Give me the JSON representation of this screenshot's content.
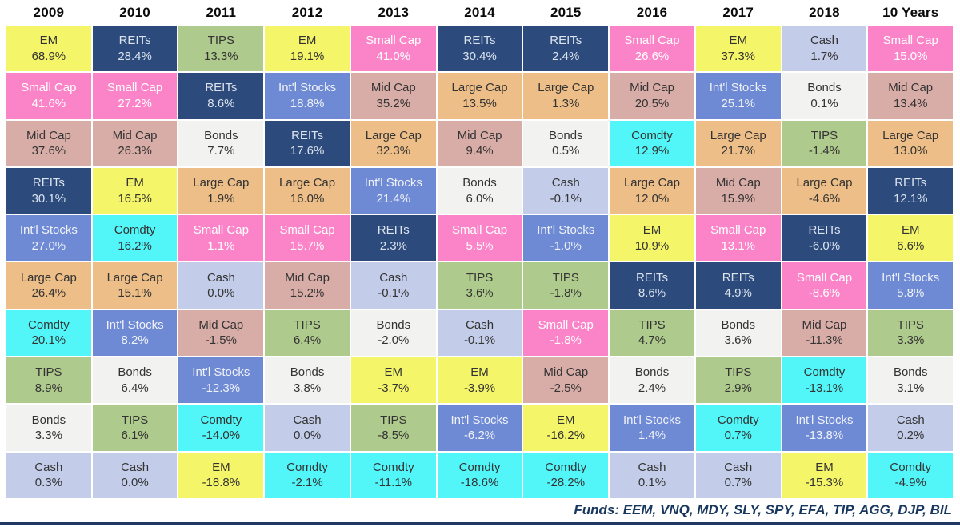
{
  "footer": {
    "text": "Funds: EEM, VNQ, MDY, SLY, SPY, EFA, TIP, AGG, DJP, BIL"
  },
  "asset_classes": {
    "EM": {
      "bg": "#F5F56A",
      "fg": "#333333"
    },
    "REITs": {
      "bg": "#2C4B7C",
      "fg": "#DCE3EE"
    },
    "TIPS": {
      "bg": "#AFCA8D",
      "fg": "#333333"
    },
    "Small Cap": {
      "bg": "#FB84C9",
      "fg": "#FFFFFF"
    },
    "Mid Cap": {
      "bg": "#D9ADA7",
      "fg": "#333333"
    },
    "Int'l Stocks": {
      "bg": "#6F8AD4",
      "fg": "#EFF2F8"
    },
    "Large Cap": {
      "bg": "#EDBE87",
      "fg": "#333333"
    },
    "Bonds": {
      "bg": "#F2F2F1",
      "fg": "#333333"
    },
    "Comdty": {
      "bg": "#52F6F8",
      "fg": "#333333"
    },
    "Cash": {
      "bg": "#C3CDE9",
      "fg": "#333333"
    }
  },
  "chart_data": {
    "type": "heatmap",
    "title": "Asset class annual returns quilt",
    "legend_position": "none",
    "columns": [
      {
        "label": "2009",
        "cells": [
          {
            "asset": "EM",
            "value": "68.9%"
          },
          {
            "asset": "Small Cap",
            "value": "41.6%"
          },
          {
            "asset": "Mid Cap",
            "value": "37.6%"
          },
          {
            "asset": "REITs",
            "value": "30.1%"
          },
          {
            "asset": "Int'l Stocks",
            "value": "27.0%"
          },
          {
            "asset": "Large Cap",
            "value": "26.4%"
          },
          {
            "asset": "Comdty",
            "value": "20.1%"
          },
          {
            "asset": "TIPS",
            "value": "8.9%"
          },
          {
            "asset": "Bonds",
            "value": "3.3%"
          },
          {
            "asset": "Cash",
            "value": "0.3%"
          }
        ]
      },
      {
        "label": "2010",
        "cells": [
          {
            "asset": "REITs",
            "value": "28.4%"
          },
          {
            "asset": "Small Cap",
            "value": "27.2%"
          },
          {
            "asset": "Mid Cap",
            "value": "26.3%"
          },
          {
            "asset": "EM",
            "value": "16.5%"
          },
          {
            "asset": "Comdty",
            "value": "16.2%"
          },
          {
            "asset": "Large Cap",
            "value": "15.1%"
          },
          {
            "asset": "Int'l Stocks",
            "value": "8.2%"
          },
          {
            "asset": "Bonds",
            "value": "6.4%"
          },
          {
            "asset": "TIPS",
            "value": "6.1%"
          },
          {
            "asset": "Cash",
            "value": "0.0%"
          }
        ]
      },
      {
        "label": "2011",
        "cells": [
          {
            "asset": "TIPS",
            "value": "13.3%"
          },
          {
            "asset": "REITs",
            "value": "8.6%"
          },
          {
            "asset": "Bonds",
            "value": "7.7%"
          },
          {
            "asset": "Large Cap",
            "value": "1.9%"
          },
          {
            "asset": "Small Cap",
            "value": "1.1%"
          },
          {
            "asset": "Cash",
            "value": "0.0%"
          },
          {
            "asset": "Mid Cap",
            "value": "-1.5%"
          },
          {
            "asset": "Int'l Stocks",
            "value": "-12.3%"
          },
          {
            "asset": "Comdty",
            "value": "-14.0%"
          },
          {
            "asset": "EM",
            "value": "-18.8%"
          }
        ]
      },
      {
        "label": "2012",
        "cells": [
          {
            "asset": "EM",
            "value": "19.1%"
          },
          {
            "asset": "Int'l Stocks",
            "value": "18.8%"
          },
          {
            "asset": "REITs",
            "value": "17.6%"
          },
          {
            "asset": "Large Cap",
            "value": "16.0%"
          },
          {
            "asset": "Small Cap",
            "value": "15.7%"
          },
          {
            "asset": "Mid Cap",
            "value": "15.2%"
          },
          {
            "asset": "TIPS",
            "value": "6.4%"
          },
          {
            "asset": "Bonds",
            "value": "3.8%"
          },
          {
            "asset": "Cash",
            "value": "0.0%"
          },
          {
            "asset": "Comdty",
            "value": "-2.1%"
          }
        ]
      },
      {
        "label": "2013",
        "cells": [
          {
            "asset": "Small Cap",
            "value": "41.0%"
          },
          {
            "asset": "Mid Cap",
            "value": "35.2%"
          },
          {
            "asset": "Large Cap",
            "value": "32.3%"
          },
          {
            "asset": "Int'l Stocks",
            "value": "21.4%"
          },
          {
            "asset": "REITs",
            "value": "2.3%"
          },
          {
            "asset": "Cash",
            "value": "-0.1%"
          },
          {
            "asset": "Bonds",
            "value": "-2.0%"
          },
          {
            "asset": "EM",
            "value": "-3.7%"
          },
          {
            "asset": "TIPS",
            "value": "-8.5%"
          },
          {
            "asset": "Comdty",
            "value": "-11.1%"
          }
        ]
      },
      {
        "label": "2014",
        "cells": [
          {
            "asset": "REITs",
            "value": "30.4%"
          },
          {
            "asset": "Large Cap",
            "value": "13.5%"
          },
          {
            "asset": "Mid Cap",
            "value": "9.4%"
          },
          {
            "asset": "Bonds",
            "value": "6.0%"
          },
          {
            "asset": "Small Cap",
            "value": "5.5%"
          },
          {
            "asset": "TIPS",
            "value": "3.6%"
          },
          {
            "asset": "Cash",
            "value": "-0.1%"
          },
          {
            "asset": "EM",
            "value": "-3.9%"
          },
          {
            "asset": "Int'l Stocks",
            "value": "-6.2%"
          },
          {
            "asset": "Comdty",
            "value": "-18.6%"
          }
        ]
      },
      {
        "label": "2015",
        "cells": [
          {
            "asset": "REITs",
            "value": "2.4%"
          },
          {
            "asset": "Large Cap",
            "value": "1.3%"
          },
          {
            "asset": "Bonds",
            "value": "0.5%"
          },
          {
            "asset": "Cash",
            "value": "-0.1%"
          },
          {
            "asset": "Int'l Stocks",
            "value": "-1.0%"
          },
          {
            "asset": "TIPS",
            "value": "-1.8%"
          },
          {
            "asset": "Small Cap",
            "value": "-1.8%"
          },
          {
            "asset": "Mid Cap",
            "value": "-2.5%"
          },
          {
            "asset": "EM",
            "value": "-16.2%"
          },
          {
            "asset": "Comdty",
            "value": "-28.2%"
          }
        ]
      },
      {
        "label": "2016",
        "cells": [
          {
            "asset": "Small Cap",
            "value": "26.6%"
          },
          {
            "asset": "Mid Cap",
            "value": "20.5%"
          },
          {
            "asset": "Comdty",
            "value": "12.9%"
          },
          {
            "asset": "Large Cap",
            "value": "12.0%"
          },
          {
            "asset": "EM",
            "value": "10.9%"
          },
          {
            "asset": "REITs",
            "value": "8.6%"
          },
          {
            "asset": "TIPS",
            "value": "4.7%"
          },
          {
            "asset": "Bonds",
            "value": "2.4%"
          },
          {
            "asset": "Int'l Stocks",
            "value": "1.4%"
          },
          {
            "asset": "Cash",
            "value": "0.1%"
          }
        ]
      },
      {
        "label": "2017",
        "cells": [
          {
            "asset": "EM",
            "value": "37.3%"
          },
          {
            "asset": "Int'l Stocks",
            "value": "25.1%"
          },
          {
            "asset": "Large Cap",
            "value": "21.7%"
          },
          {
            "asset": "Mid Cap",
            "value": "15.9%"
          },
          {
            "asset": "Small Cap",
            "value": "13.1%"
          },
          {
            "asset": "REITs",
            "value": "4.9%"
          },
          {
            "asset": "Bonds",
            "value": "3.6%"
          },
          {
            "asset": "TIPS",
            "value": "2.9%"
          },
          {
            "asset": "Comdty",
            "value": "0.7%"
          },
          {
            "asset": "Cash",
            "value": "0.7%"
          }
        ]
      },
      {
        "label": "2018",
        "cells": [
          {
            "asset": "Cash",
            "value": "1.7%"
          },
          {
            "asset": "Bonds",
            "value": "0.1%"
          },
          {
            "asset": "TIPS",
            "value": "-1.4%"
          },
          {
            "asset": "Large Cap",
            "value": "-4.6%"
          },
          {
            "asset": "REITs",
            "value": "-6.0%"
          },
          {
            "asset": "Small Cap",
            "value": "-8.6%"
          },
          {
            "asset": "Mid Cap",
            "value": "-11.3%"
          },
          {
            "asset": "Comdty",
            "value": "-13.1%"
          },
          {
            "asset": "Int'l Stocks",
            "value": "-13.8%"
          },
          {
            "asset": "EM",
            "value": "-15.3%"
          }
        ]
      },
      {
        "label": "10 Years",
        "cells": [
          {
            "asset": "Small Cap",
            "value": "15.0%"
          },
          {
            "asset": "Mid Cap",
            "value": "13.4%"
          },
          {
            "asset": "Large Cap",
            "value": "13.0%"
          },
          {
            "asset": "REITs",
            "value": "12.1%"
          },
          {
            "asset": "EM",
            "value": "6.6%"
          },
          {
            "asset": "Int'l Stocks",
            "value": "5.8%"
          },
          {
            "asset": "TIPS",
            "value": "3.3%"
          },
          {
            "asset": "Bonds",
            "value": "3.1%"
          },
          {
            "asset": "Cash",
            "value": "0.2%"
          },
          {
            "asset": "Comdty",
            "value": "-4.9%"
          }
        ]
      }
    ]
  }
}
